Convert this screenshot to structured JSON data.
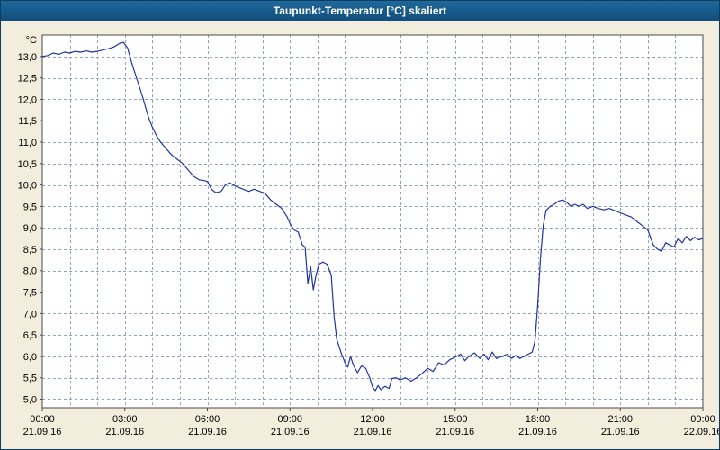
{
  "window": {
    "title": "Taupunkt-Temperatur [°C] skaliert",
    "titlebar_color_top": "#20689a",
    "titlebar_color_bottom": "#114f7d",
    "background_color": "#f2eddc"
  },
  "chart_data": {
    "type": "line",
    "title": "Taupunkt-Temperatur [°C] skaliert",
    "xlabel": "",
    "ylabel": "°C",
    "ylim": [
      4.8,
      13.5
    ],
    "ytick_start": 5.0,
    "ytick_end": 13.0,
    "ytick_step": 0.5,
    "ytick_decimal_separator": ",",
    "xlim": [
      0,
      24
    ],
    "x_unit": "hours",
    "x_major_tick_interval_hours": 3,
    "grid": {
      "style": "dashed",
      "color": "#8fa3c8",
      "x_interval_hours": 1,
      "y_interval": 0.5
    },
    "plot_background": "#ffffff",
    "plot_border_color": "#4a4a4a",
    "legend": "none",
    "xticks": [
      {
        "hour": 0,
        "time": "00:00",
        "date": "21.09.16"
      },
      {
        "hour": 3,
        "time": "03:00",
        "date": "21.09.16"
      },
      {
        "hour": 6,
        "time": "06:00",
        "date": "21.09.16"
      },
      {
        "hour": 9,
        "time": "09:00",
        "date": "21.09.16"
      },
      {
        "hour": 12,
        "time": "12:00",
        "date": "21.09.16"
      },
      {
        "hour": 15,
        "time": "15:00",
        "date": "21.09.16"
      },
      {
        "hour": 18,
        "time": "18:00",
        "date": "21.09.16"
      },
      {
        "hour": 21,
        "time": "21:00",
        "date": "21.09.16"
      },
      {
        "hour": 24,
        "time": "00:00",
        "date": "22.09.16"
      }
    ],
    "series": [
      {
        "name": "Taupunkt-Temperatur",
        "color": "#1f35a0",
        "points": [
          [
            0.0,
            13.0
          ],
          [
            0.2,
            13.02
          ],
          [
            0.4,
            13.08
          ],
          [
            0.6,
            13.05
          ],
          [
            0.8,
            13.1
          ],
          [
            1.0,
            13.08
          ],
          [
            1.2,
            13.12
          ],
          [
            1.4,
            13.1
          ],
          [
            1.6,
            13.13
          ],
          [
            1.8,
            13.1
          ],
          [
            2.0,
            13.12
          ],
          [
            2.2,
            13.15
          ],
          [
            2.4,
            13.18
          ],
          [
            2.6,
            13.22
          ],
          [
            2.8,
            13.3
          ],
          [
            2.95,
            13.33
          ],
          [
            3.1,
            13.2
          ],
          [
            3.25,
            12.85
          ],
          [
            3.45,
            12.45
          ],
          [
            3.65,
            12.05
          ],
          [
            3.85,
            11.6
          ],
          [
            4.0,
            11.35
          ],
          [
            4.15,
            11.15
          ],
          [
            4.3,
            11.0
          ],
          [
            4.5,
            10.85
          ],
          [
            4.7,
            10.7
          ],
          [
            4.9,
            10.6
          ],
          [
            5.1,
            10.5
          ],
          [
            5.3,
            10.35
          ],
          [
            5.5,
            10.2
          ],
          [
            5.7,
            10.12
          ],
          [
            5.9,
            10.1
          ],
          [
            6.0,
            10.08
          ],
          [
            6.15,
            9.9
          ],
          [
            6.3,
            9.82
          ],
          [
            6.5,
            9.85
          ],
          [
            6.65,
            10.0
          ],
          [
            6.8,
            10.05
          ],
          [
            6.95,
            10.0
          ],
          [
            7.1,
            9.95
          ],
          [
            7.3,
            9.9
          ],
          [
            7.5,
            9.85
          ],
          [
            7.7,
            9.9
          ],
          [
            7.9,
            9.85
          ],
          [
            8.1,
            9.8
          ],
          [
            8.3,
            9.65
          ],
          [
            8.5,
            9.55
          ],
          [
            8.7,
            9.45
          ],
          [
            8.9,
            9.25
          ],
          [
            9.0,
            9.1
          ],
          [
            9.15,
            8.95
          ],
          [
            9.3,
            8.9
          ],
          [
            9.45,
            8.6
          ],
          [
            9.55,
            8.55
          ],
          [
            9.65,
            7.7
          ],
          [
            9.75,
            8.1
          ],
          [
            9.85,
            7.55
          ],
          [
            9.95,
            7.9
          ],
          [
            10.05,
            8.15
          ],
          [
            10.2,
            8.2
          ],
          [
            10.35,
            8.15
          ],
          [
            10.5,
            7.9
          ],
          [
            10.6,
            6.95
          ],
          [
            10.7,
            6.4
          ],
          [
            10.85,
            6.1
          ],
          [
            11.0,
            5.85
          ],
          [
            11.1,
            5.75
          ],
          [
            11.2,
            6.0
          ],
          [
            11.3,
            5.8
          ],
          [
            11.45,
            5.62
          ],
          [
            11.6,
            5.78
          ],
          [
            11.75,
            5.72
          ],
          [
            11.9,
            5.5
          ],
          [
            12.0,
            5.28
          ],
          [
            12.1,
            5.2
          ],
          [
            12.2,
            5.32
          ],
          [
            12.3,
            5.22
          ],
          [
            12.45,
            5.3
          ],
          [
            12.6,
            5.25
          ],
          [
            12.7,
            5.48
          ],
          [
            12.85,
            5.5
          ],
          [
            13.0,
            5.45
          ],
          [
            13.2,
            5.5
          ],
          [
            13.4,
            5.42
          ],
          [
            13.6,
            5.5
          ],
          [
            13.8,
            5.6
          ],
          [
            14.0,
            5.72
          ],
          [
            14.2,
            5.65
          ],
          [
            14.4,
            5.85
          ],
          [
            14.6,
            5.8
          ],
          [
            14.8,
            5.92
          ],
          [
            15.0,
            5.98
          ],
          [
            15.2,
            6.05
          ],
          [
            15.35,
            5.9
          ],
          [
            15.5,
            6.0
          ],
          [
            15.7,
            6.08
          ],
          [
            15.9,
            5.95
          ],
          [
            16.05,
            6.05
          ],
          [
            16.2,
            5.92
          ],
          [
            16.35,
            6.1
          ],
          [
            16.5,
            5.95
          ],
          [
            16.7,
            6.0
          ],
          [
            16.9,
            6.05
          ],
          [
            17.05,
            5.95
          ],
          [
            17.2,
            6.02
          ],
          [
            17.35,
            5.95
          ],
          [
            17.5,
            6.0
          ],
          [
            17.65,
            6.05
          ],
          [
            17.8,
            6.1
          ],
          [
            17.9,
            6.35
          ],
          [
            18.0,
            7.2
          ],
          [
            18.1,
            8.3
          ],
          [
            18.2,
            9.05
          ],
          [
            18.3,
            9.4
          ],
          [
            18.45,
            9.5
          ],
          [
            18.6,
            9.55
          ],
          [
            18.75,
            9.62
          ],
          [
            18.9,
            9.65
          ],
          [
            19.05,
            9.6
          ],
          [
            19.2,
            9.5
          ],
          [
            19.35,
            9.55
          ],
          [
            19.5,
            9.5
          ],
          [
            19.65,
            9.55
          ],
          [
            19.8,
            9.45
          ],
          [
            20.0,
            9.5
          ],
          [
            20.2,
            9.45
          ],
          [
            20.4,
            9.42
          ],
          [
            20.6,
            9.45
          ],
          [
            20.8,
            9.4
          ],
          [
            21.0,
            9.35
          ],
          [
            21.2,
            9.3
          ],
          [
            21.4,
            9.25
          ],
          [
            21.6,
            9.15
          ],
          [
            21.8,
            9.05
          ],
          [
            22.0,
            8.95
          ],
          [
            22.2,
            8.6
          ],
          [
            22.35,
            8.5
          ],
          [
            22.5,
            8.45
          ],
          [
            22.65,
            8.65
          ],
          [
            22.8,
            8.6
          ],
          [
            22.95,
            8.55
          ],
          [
            23.1,
            8.75
          ],
          [
            23.25,
            8.65
          ],
          [
            23.4,
            8.8
          ],
          [
            23.55,
            8.7
          ],
          [
            23.7,
            8.78
          ],
          [
            23.85,
            8.72
          ],
          [
            24.0,
            8.75
          ]
        ]
      }
    ]
  }
}
